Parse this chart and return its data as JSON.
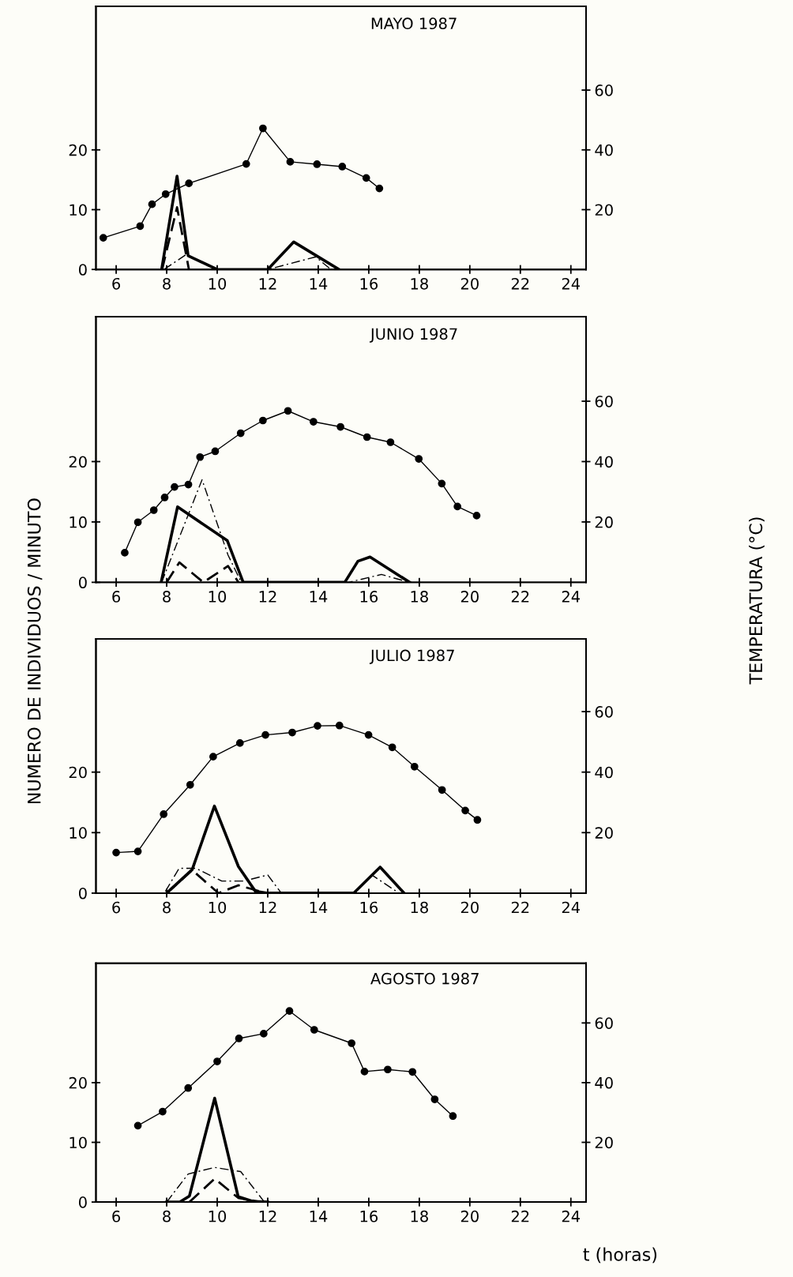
{
  "chart_data": [
    {
      "type": "line",
      "title": "MAYO 1987",
      "xlim": [
        5.2,
        24.6
      ],
      "xticks": [
        6,
        8,
        10,
        12,
        14,
        16,
        18,
        20,
        22,
        24
      ],
      "ylim": [
        0,
        44
      ],
      "yticks": [
        0,
        10,
        20
      ],
      "y2lim": [
        0,
        88
      ],
      "y2ticks": [
        20,
        40,
        60
      ],
      "series": [
        {
          "color": "#000000",
          "axis": "y2",
          "marker": "circle",
          "line_style": "solid",
          "x": [
            5.49,
            6.95,
            7.42,
            7.96,
            8.88,
            11.15,
            11.81,
            12.89,
            13.95,
            14.95,
            15.9,
            16.42
          ],
          "values": [
            10.6,
            14.5,
            21.8,
            25.2,
            28.8,
            35.3,
            47.2,
            36.0,
            35.2,
            34.4,
            30.6,
            27.1
          ]
        },
        {
          "color": "#000000",
          "marker": "none",
          "line_style": "solid",
          "x": [
            7.8,
            8.41,
            8.85,
            10.0,
            12.0,
            13.03,
            14.82
          ],
          "values": [
            0,
            15.6,
            2.3,
            0,
            0,
            4.6,
            0
          ]
        },
        {
          "color": "#000000",
          "marker": "none",
          "line_style": "dashed",
          "x": [
            7.82,
            8.41,
            8.88
          ],
          "values": [
            0,
            10.4,
            0
          ]
        },
        {
          "color": "#000000",
          "marker": "none",
          "line_style": "dashdot",
          "x": [
            7.9,
            8.77,
            10.0,
            12.0,
            13.9,
            14.5
          ],
          "values": [
            0,
            2.5,
            0,
            0,
            2.1,
            0
          ]
        }
      ]
    },
    {
      "type": "line",
      "title": "JUNIO 1987",
      "ylabel": "NUMERO DE INDIVIDUOS / MINUTO",
      "y2label": "TEMPERATURA (°C)",
      "xlim": [
        5.2,
        24.6
      ],
      "xticks": [
        6,
        8,
        10,
        12,
        14,
        16,
        18,
        20,
        22,
        24
      ],
      "ylim": [
        0,
        44
      ],
      "yticks": [
        0,
        10,
        20
      ],
      "y2lim": [
        0,
        88
      ],
      "y2ticks": [
        20,
        40,
        60
      ],
      "series": [
        {
          "color": "#000000",
          "axis": "y2",
          "marker": "circle",
          "line_style": "solid",
          "x": [
            6.34,
            6.86,
            7.49,
            7.92,
            8.31,
            8.86,
            9.32,
            9.92,
            10.93,
            11.81,
            12.8,
            13.81,
            14.88,
            15.93,
            16.86,
            17.98,
            18.89,
            19.51,
            20.27
          ],
          "values": [
            9.8,
            19.9,
            23.9,
            28.1,
            31.6,
            32.4,
            41.5,
            43.4,
            49.4,
            53.6,
            56.8,
            53.2,
            51.5,
            48.1,
            46.4,
            40.9,
            32.7,
            25.1,
            22.1
          ]
        },
        {
          "color": "#000000",
          "marker": "none",
          "line_style": "solid",
          "x": [
            7.78,
            8.43,
            10.4,
            11.03,
            15.05,
            15.57,
            16.05,
            17.62
          ],
          "values": [
            0,
            12.5,
            6.9,
            0,
            0,
            3.5,
            4.2,
            0
          ]
        },
        {
          "color": "#000000",
          "marker": "none",
          "line_style": "dashed",
          "x": [
            8.0,
            8.5,
            9.45,
            10.43,
            10.84
          ],
          "values": [
            0,
            3.3,
            0,
            2.7,
            0
          ]
        },
        {
          "color": "#000000",
          "marker": "none",
          "line_style": "dashdot",
          "x": [
            7.8,
            9.4,
            10.43,
            10.95,
            15.2,
            16.5,
            17.6
          ],
          "values": [
            0,
            17.0,
            4.5,
            0,
            0,
            1.3,
            0
          ]
        }
      ]
    },
    {
      "type": "line",
      "title": "JULIO 1987",
      "xlim": [
        5.2,
        24.6
      ],
      "xticks": [
        6,
        8,
        10,
        12,
        14,
        16,
        18,
        20,
        22,
        24
      ],
      "ylim": [
        0,
        42
      ],
      "yticks": [
        0,
        10,
        20
      ],
      "y2lim": [
        0,
        84
      ],
      "y2ticks": [
        20,
        40,
        60
      ],
      "series": [
        {
          "color": "#000000",
          "axis": "y2",
          "marker": "circle",
          "line_style": "solid",
          "x": [
            6.0,
            6.86,
            7.88,
            8.93,
            9.84,
            10.9,
            11.91,
            12.97,
            13.97,
            14.84,
            15.99,
            16.93,
            17.81,
            18.9,
            19.82,
            20.3
          ],
          "values": [
            13.4,
            13.8,
            26.1,
            35.8,
            45.1,
            49.6,
            52.3,
            53.1,
            55.3,
            55.4,
            52.3,
            48.2,
            41.8,
            34.1,
            27.3,
            24.2
          ]
        },
        {
          "color": "#000000",
          "marker": "none",
          "line_style": "solid",
          "x": [
            8.0,
            9.01,
            9.89,
            10.84,
            11.51,
            12.0,
            15.4,
            16.45,
            17.4
          ],
          "values": [
            0,
            3.9,
            14.4,
            4.4,
            0.3,
            0,
            0,
            4.3,
            0
          ]
        },
        {
          "color": "#000000",
          "marker": "none",
          "line_style": "dashed",
          "x": [
            8.0,
            9.01,
            10.05,
            10.84,
            11.86,
            12.0
          ],
          "values": [
            0,
            3.8,
            0,
            1.3,
            0.1,
            0
          ]
        },
        {
          "color": "#000000",
          "marker": "none",
          "line_style": "dashdot",
          "x": [
            7.95,
            8.49,
            9.16,
            10.18,
            11.05,
            12.0,
            12.54,
            15.45,
            16.12,
            17.2
          ],
          "values": [
            0.3,
            4.1,
            4.1,
            2.0,
            2.0,
            3.0,
            0,
            0,
            3.0,
            0
          ]
        }
      ]
    },
    {
      "type": "line",
      "title": "AGOSTO 1987",
      "xlabel": "t (horas)",
      "xlim": [
        5.2,
        24.6
      ],
      "xticks": [
        6,
        8,
        10,
        12,
        14,
        16,
        18,
        20,
        22,
        24
      ],
      "ylim": [
        0,
        40
      ],
      "yticks": [
        0,
        10,
        20
      ],
      "y2lim": [
        0,
        80
      ],
      "y2ticks": [
        20,
        40,
        60
      ],
      "series": [
        {
          "color": "#000000",
          "axis": "y2",
          "marker": "circle",
          "line_style": "solid",
          "x": [
            6.86,
            7.84,
            8.85,
            10.0,
            10.86,
            11.84,
            12.86,
            13.84,
            15.32,
            15.83,
            16.75,
            17.73,
            18.61,
            19.33
          ],
          "values": [
            25.6,
            30.3,
            38.2,
            47.1,
            54.8,
            56.4,
            64.0,
            57.7,
            53.2,
            43.7,
            44.4,
            43.6,
            34.4,
            28.8
          ]
        },
        {
          "color": "#000000",
          "marker": "none",
          "line_style": "solid",
          "x": [
            8.0,
            8.52,
            8.9,
            9.9,
            10.83,
            11.41,
            12.0
          ],
          "values": [
            0,
            0,
            1.0,
            17.4,
            0.9,
            0.1,
            0
          ]
        },
        {
          "color": "#000000",
          "marker": "none",
          "line_style": "dashed",
          "x": [
            8.9,
            9.9,
            10.83,
            11.75
          ],
          "values": [
            0,
            3.9,
            0.7,
            0
          ]
        },
        {
          "color": "#000000",
          "marker": "none",
          "line_style": "dashdot",
          "x": [
            8.0,
            8.85,
            9.9,
            10.93,
            11.87
          ],
          "values": [
            0,
            4.7,
            5.8,
            5.1,
            0
          ]
        }
      ]
    }
  ]
}
